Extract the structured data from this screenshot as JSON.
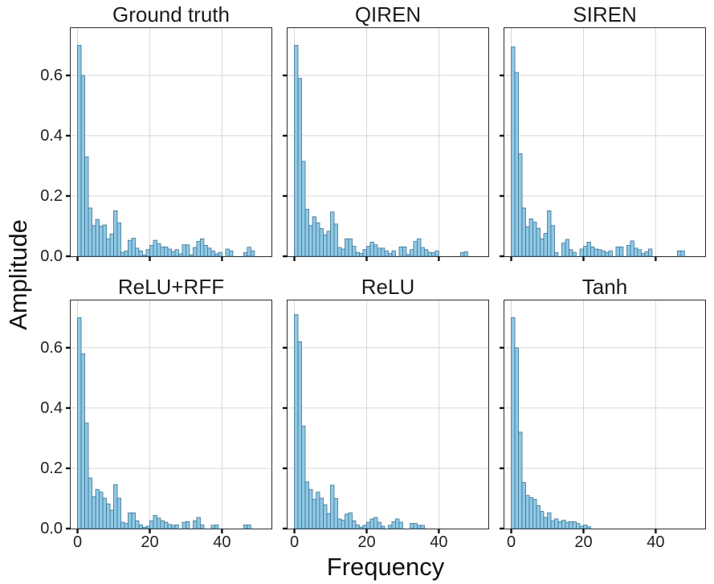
{
  "labels": {
    "ylabel": "Amplitude",
    "xlabel": "Frequency"
  },
  "style": {
    "bar_fill": "#8ec9e6",
    "bar_edge": "#3f7392",
    "grid_color": "#d7d7d7",
    "spine_color": "#2b2b2b",
    "tick_color": "#111111",
    "background": "#ffffff"
  },
  "chart_data": {
    "type": "bar",
    "title": "",
    "xlabel": "Frequency",
    "ylabel": "Amplitude",
    "layout": {
      "rows": 2,
      "cols": 3,
      "grid": true,
      "legend": "none",
      "bin_width": 1,
      "xlim": [
        -1.9,
        53.7
      ],
      "ylim": [
        0,
        0.757
      ],
      "xticks": [
        0,
        20,
        40
      ],
      "yticks": [
        0.0,
        0.2,
        0.4,
        0.6
      ],
      "xtick_labels": [
        "0",
        "20",
        "40"
      ],
      "ytick_labels": [
        "0.0",
        "0.2",
        "0.4",
        "0.6"
      ]
    },
    "charts": [
      {
        "title": "Ground truth",
        "bin_start": 0,
        "values": [
          0.7,
          0.6,
          0.33,
          0.16,
          0.102,
          0.122,
          0.1,
          0.104,
          0.058,
          0.074,
          0.151,
          0.111,
          0.013,
          0.018,
          0.053,
          0.06,
          0.027,
          0.018,
          0.004,
          0.022,
          0.036,
          0.053,
          0.042,
          0.031,
          0.031,
          0.024,
          0.016,
          0.022,
          0.008,
          0.038,
          0.038,
          0.005,
          0.029,
          0.049,
          0.058,
          0.036,
          0.027,
          0.018,
          0.008,
          0.013,
          0,
          0.024,
          0.018,
          0,
          0,
          0,
          0.012,
          0.03,
          0.018,
          0
        ]
      },
      {
        "title": "QIREN",
        "bin_start": 0,
        "values": [
          0.7,
          0.59,
          0.315,
          0.156,
          0.102,
          0.131,
          0.111,
          0.092,
          0.071,
          0.083,
          0.147,
          0.107,
          0.029,
          0.024,
          0.058,
          0.058,
          0.033,
          0.013,
          0.009,
          0.022,
          0.033,
          0.047,
          0.038,
          0.027,
          0.027,
          0.018,
          0.009,
          0.018,
          0,
          0.031,
          0.031,
          0.006,
          0.022,
          0.049,
          0.058,
          0.029,
          0.022,
          0.013,
          0.012,
          0.018,
          0,
          0,
          0,
          0,
          0,
          0,
          0.012,
          0.015,
          0,
          0
        ]
      },
      {
        "title": "SIREN",
        "bin_start": 0,
        "values": [
          0.695,
          0.61,
          0.34,
          0.16,
          0.098,
          0.124,
          0.113,
          0.093,
          0.058,
          0.076,
          0.151,
          0.102,
          0.012,
          0,
          0.044,
          0.056,
          0.022,
          0.013,
          0,
          0.024,
          0.033,
          0.047,
          0.031,
          0.024,
          0.022,
          0.018,
          0.013,
          0.018,
          0,
          0.031,
          0.031,
          0,
          0.036,
          0.051,
          0.027,
          0.022,
          0.009,
          0.015,
          0.024,
          0,
          0,
          0,
          0,
          0,
          0,
          0,
          0.018,
          0.018,
          0,
          0
        ]
      },
      {
        "title": "ReLU+RFF",
        "bin_start": 0,
        "values": [
          0.7,
          0.58,
          0.35,
          0.168,
          0.106,
          0.13,
          0.121,
          0.101,
          0.082,
          0.061,
          0.146,
          0.101,
          0.021,
          0.017,
          0.052,
          0.052,
          0.026,
          0.012,
          0.004,
          0.008,
          0.026,
          0.044,
          0.035,
          0.026,
          0.021,
          0.014,
          0.011,
          0.012,
          0,
          0.021,
          0.023,
          0,
          0.026,
          0.037,
          0.012,
          0,
          0,
          0.011,
          0.012,
          0,
          0,
          0,
          0,
          0,
          0,
          0,
          0.012,
          0.012,
          0,
          0
        ]
      },
      {
        "title": "ReLU",
        "bin_start": 0,
        "values": [
          0.71,
          0.62,
          0.34,
          0.155,
          0.13,
          0.097,
          0.121,
          0.101,
          0.079,
          0.05,
          0.144,
          0.1,
          0.032,
          0.028,
          0.048,
          0.052,
          0.026,
          0.012,
          0.005,
          0.011,
          0.021,
          0.032,
          0.037,
          0.021,
          0.008,
          0,
          0.011,
          0.023,
          0.032,
          0.021,
          0,
          0,
          0.017,
          0.017,
          0.011,
          0.011,
          0,
          0,
          0,
          0,
          0,
          0,
          0,
          0,
          0,
          0,
          0,
          0,
          0,
          0
        ]
      },
      {
        "title": "Tanh",
        "bin_start": 0,
        "values": [
          0.7,
          0.6,
          0.32,
          0.153,
          0.11,
          0.103,
          0.097,
          0.076,
          0.057,
          0.037,
          0.052,
          0.026,
          0.032,
          0.023,
          0.028,
          0.021,
          0.023,
          0.023,
          0.017,
          0.008,
          0.012,
          0.006,
          0,
          0,
          0,
          0,
          0,
          0,
          0,
          0,
          0,
          0,
          0,
          0,
          0,
          0,
          0,
          0,
          0,
          0,
          0,
          0,
          0,
          0,
          0,
          0,
          0,
          0,
          0,
          0
        ]
      }
    ]
  }
}
